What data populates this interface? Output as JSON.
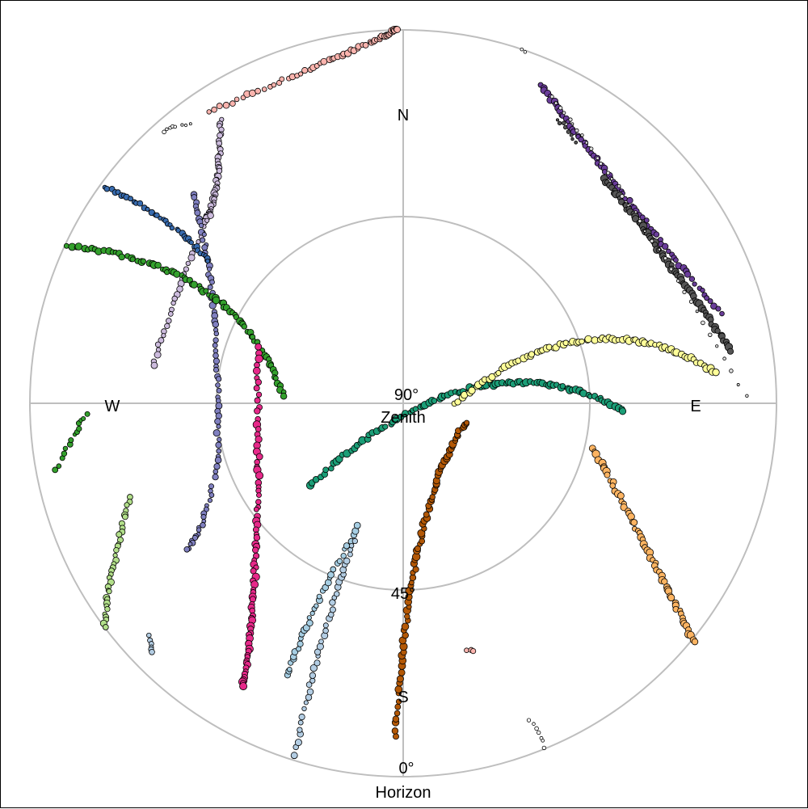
{
  "chart_data": {
    "type": "scatter",
    "projection": "polar-sky",
    "axes": {
      "elevation_range": [
        0,
        90
      ],
      "rings_at": [
        0,
        45
      ],
      "grid": true,
      "center_label_value": "90°",
      "center_label_name": "Zenith",
      "mid_label": "45°",
      "outer_label_value": "0°",
      "outer_label_name": "Horizon"
    },
    "directions": {
      "north": "N",
      "south": "S",
      "east": "E",
      "west": "W"
    },
    "series": [
      {
        "color": "#fbb4ae",
        "start": [
          -0.52,
          0.78
        ],
        "control": [
          -0.05,
          0.98
        ],
        "end": [
          -0.02,
          1.0
        ],
        "count": 60,
        "size": 3.5
      },
      {
        "color": "#ffffff",
        "start": [
          -0.64,
          0.73
        ],
        "control": [
          -0.62,
          0.74
        ],
        "end": [
          -0.57,
          0.75
        ],
        "count": 8,
        "size": 2
      },
      {
        "color": "#ccbbdd",
        "start": [
          -0.49,
          0.76
        ],
        "control": [
          -0.49,
          0.55
        ],
        "end": [
          -0.53,
          0.49
        ],
        "count": 45,
        "size": 3.5
      },
      {
        "color": "#ccbbdd",
        "start": [
          -0.52,
          0.5
        ],
        "control": [
          -0.61,
          0.3
        ],
        "end": [
          -0.67,
          0.1
        ],
        "count": 30,
        "size": 3.5
      },
      {
        "color": "#8080c0",
        "start": [
          -0.56,
          0.56
        ],
        "control": [
          -0.48,
          0.25
        ],
        "end": [
          -0.5,
          -0.2
        ],
        "count": 60,
        "size": 3.5
      },
      {
        "color": "#8080c0",
        "start": [
          -0.51,
          -0.22
        ],
        "control": [
          -0.54,
          -0.35
        ],
        "end": [
          -0.58,
          -0.39
        ],
        "count": 20,
        "size": 3
      },
      {
        "color": "#386cb0",
        "start": [
          -0.8,
          0.58
        ],
        "control": [
          -0.62,
          0.5
        ],
        "end": [
          -0.52,
          0.38
        ],
        "count": 40,
        "size": 3.2
      },
      {
        "color": "#33a02c",
        "start": [
          -0.9,
          0.42
        ],
        "control": [
          -0.45,
          0.38
        ],
        "end": [
          -0.32,
          0.02
        ],
        "count": 80,
        "size": 3.8
      },
      {
        "color": "#33a02c",
        "start": [
          -0.93,
          -0.18
        ],
        "control": [
          -0.88,
          -0.08
        ],
        "end": [
          -0.85,
          -0.03
        ],
        "count": 14,
        "size": 3
      },
      {
        "color": "#e7298a",
        "start": [
          -0.39,
          0.15
        ],
        "control": [
          -0.38,
          -0.5
        ],
        "end": [
          -0.43,
          -0.76
        ],
        "count": 80,
        "size": 4
      },
      {
        "color": "#b2df8a",
        "start": [
          -0.73,
          -0.25
        ],
        "control": [
          -0.79,
          -0.45
        ],
        "end": [
          -0.8,
          -0.6
        ],
        "count": 35,
        "size": 3.5
      },
      {
        "color": "#a6cee3",
        "start": [
          -0.31,
          -0.73
        ],
        "control": [
          -0.25,
          -0.55
        ],
        "end": [
          -0.12,
          -0.33
        ],
        "count": 35,
        "size": 3.5
      },
      {
        "color": "#b3cde3",
        "start": [
          -0.29,
          -0.94
        ],
        "control": [
          -0.22,
          -0.6
        ],
        "end": [
          -0.13,
          -0.37
        ],
        "count": 40,
        "size": 3.5
      },
      {
        "color": "#b3cde3",
        "start": [
          -0.68,
          -0.62
        ],
        "control": [
          -0.68,
          -0.65
        ],
        "end": [
          -0.67,
          -0.67
        ],
        "count": 6,
        "size": 3
      },
      {
        "color": "#b35806",
        "start": [
          -0.02,
          -0.89
        ],
        "control": [
          0.02,
          -0.25
        ],
        "end": [
          0.17,
          -0.05
        ],
        "count": 80,
        "size": 4
      },
      {
        "color": "#fdb462",
        "start": [
          0.51,
          -0.12
        ],
        "control": [
          0.66,
          -0.4
        ],
        "end": [
          0.78,
          -0.64
        ],
        "count": 60,
        "size": 4
      },
      {
        "color": "#1b9e77",
        "start": [
          -0.25,
          -0.22
        ],
        "control": [
          0.2,
          0.2
        ],
        "end": [
          0.59,
          -0.02
        ],
        "count": 100,
        "size": 4
      },
      {
        "color": "#ffff99",
        "start": [
          0.14,
          0.0
        ],
        "control": [
          0.5,
          0.3
        ],
        "end": [
          0.84,
          0.08
        ],
        "count": 80,
        "size": 4
      },
      {
        "color": "#6a3d9a",
        "start": [
          0.37,
          0.85
        ],
        "control": [
          0.55,
          0.6
        ],
        "end": [
          0.85,
          0.24
        ],
        "count": 70,
        "size": 3.5
      },
      {
        "color": "#555555",
        "start": [
          0.54,
          0.6
        ],
        "control": [
          0.7,
          0.4
        ],
        "end": [
          0.88,
          0.14
        ],
        "count": 70,
        "size": 4
      },
      {
        "color": "#e0e0e0",
        "start": [
          0.4,
          0.82
        ],
        "control": [
          0.58,
          0.6
        ],
        "end": [
          0.92,
          0.02
        ],
        "count": 35,
        "size": 2
      },
      {
        "color": "#555555",
        "start": [
          0.41,
          0.76
        ],
        "control": [
          0.44,
          0.74
        ],
        "end": [
          0.46,
          0.7
        ],
        "count": 8,
        "size": 2
      },
      {
        "color": "#fbb4ae",
        "start": [
          0.17,
          -0.66
        ],
        "control": [
          0.18,
          -0.66
        ],
        "end": [
          0.19,
          -0.66
        ],
        "count": 3,
        "size": 3
      },
      {
        "color": "#ffffff",
        "start": [
          0.34,
          -0.85
        ],
        "control": [
          0.36,
          -0.88
        ],
        "end": [
          0.38,
          -0.92
        ],
        "count": 7,
        "size": 2
      },
      {
        "color": "#ffffff",
        "start": [
          0.32,
          0.95
        ],
        "control": [
          0.33,
          0.94
        ],
        "end": [
          0.33,
          0.94
        ],
        "count": 2,
        "size": 2
      }
    ]
  }
}
